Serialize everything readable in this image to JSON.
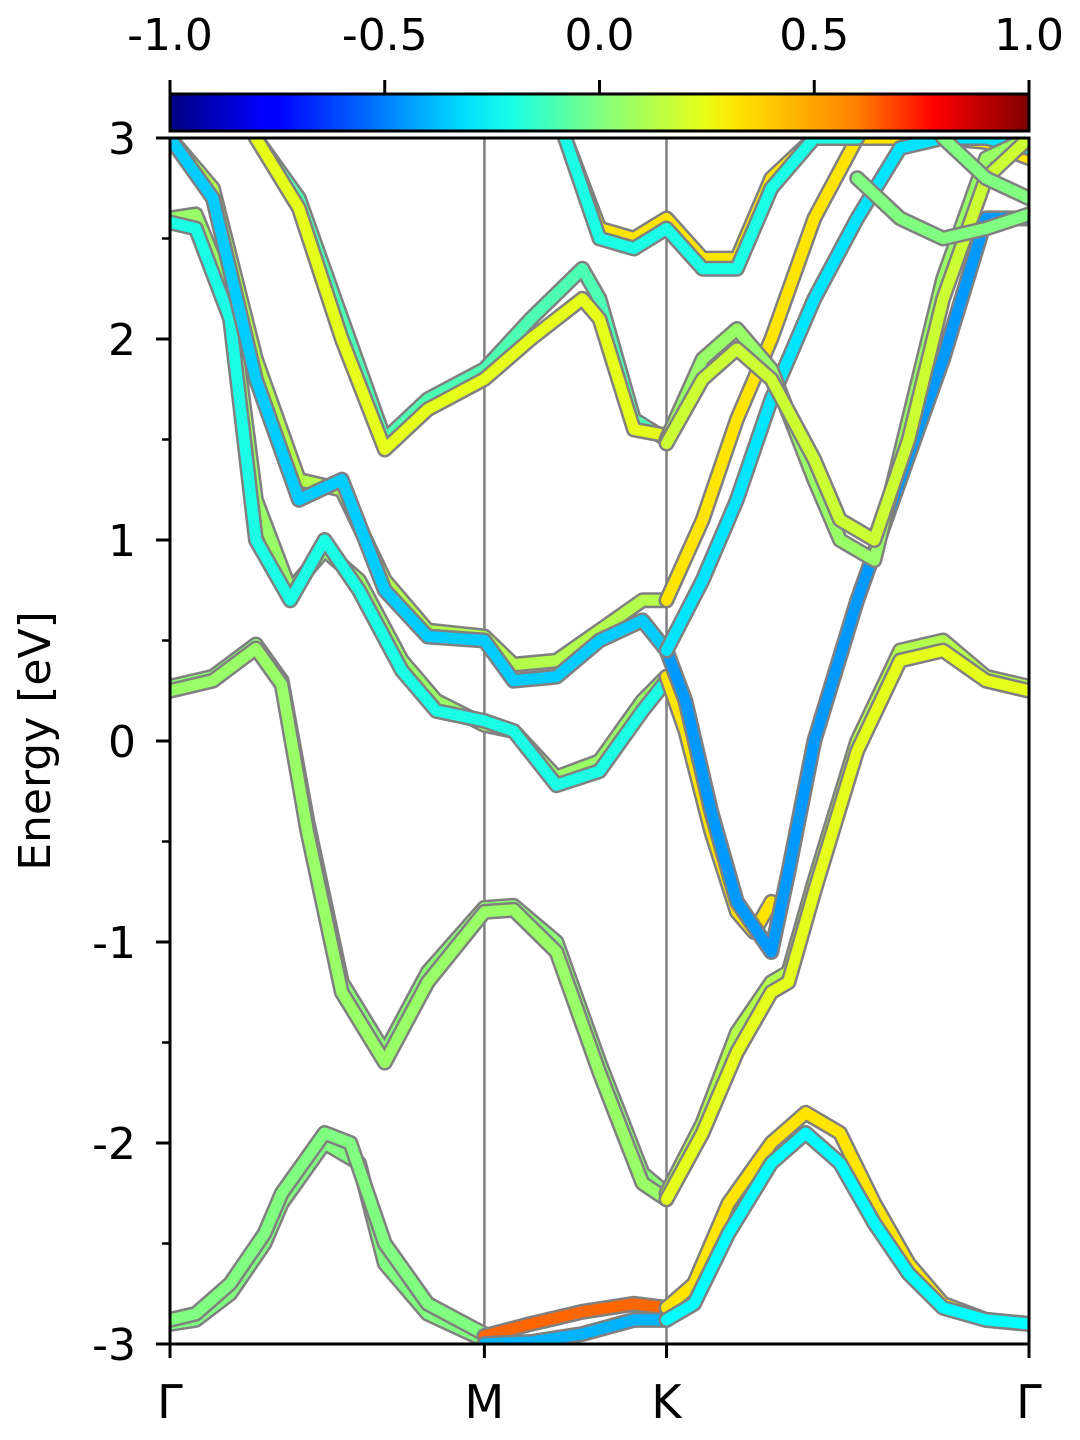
{
  "chart_data": {
    "type": "line",
    "title": "",
    "xlabel": "",
    "ylabel": "Energy [eV]",
    "ylim": [
      -3,
      3
    ],
    "yticks": [
      "-3",
      "-2",
      "-1",
      "0",
      "1",
      "2",
      "3"
    ],
    "xlim": [
      0,
      1
    ],
    "xticks": [
      {
        "label": "Γ",
        "x": 0.0
      },
      {
        "label": "M",
        "x": 0.366
      },
      {
        "label": "K",
        "x": 0.578
      },
      {
        "label": "Γ",
        "x": 1.0
      }
    ],
    "colorbar": {
      "colormap": "jet",
      "range": [
        -1.0,
        1.0
      ],
      "ticks": [
        "-1.0",
        "-0.5",
        "0.0",
        "0.5",
        "1.0"
      ],
      "placement": "top"
    },
    "line_color": "#7fff7f",
    "grid": false,
    "series": [
      {
        "x": [
          0,
          0.03,
          0.07,
          0.11,
          0.13,
          0.18,
          0.22,
          0.25,
          0.3,
          0.366
        ],
        "y": [
          -2.9,
          -2.88,
          -2.75,
          -2.5,
          -2.3,
          -2.0,
          -2.1,
          -2.6,
          -2.85,
          -2.98
        ],
        "c": 0
      },
      {
        "x": [
          0,
          0.03,
          0.07,
          0.11,
          0.13,
          0.18,
          0.21,
          0.25,
          0.3,
          0.366
        ],
        "y": [
          -2.88,
          -2.85,
          -2.7,
          -2.45,
          -2.25,
          -1.95,
          -2.0,
          -2.5,
          -2.8,
          -2.95
        ],
        "c": 0
      },
      {
        "x": [
          0.366,
          0.42,
          0.48,
          0.54,
          0.578
        ],
        "y": [
          -2.96,
          -2.9,
          -2.84,
          -2.8,
          -2.82
        ],
        "c": 0.55
      },
      {
        "x": [
          0.366,
          0.42,
          0.48,
          0.54,
          0.578
        ],
        "y": [
          -3.0,
          -2.99,
          -2.95,
          -2.88,
          -2.88
        ],
        "c": -0.4
      },
      {
        "x": [
          0.578,
          0.61,
          0.65,
          0.7,
          0.74,
          0.78,
          0.82,
          0.86,
          0.9,
          0.95,
          1.0
        ],
        "y": [
          -2.82,
          -2.7,
          -2.3,
          -2.0,
          -1.85,
          -1.95,
          -2.3,
          -2.6,
          -2.8,
          -2.88,
          -2.9
        ],
        "c": 0.3
      },
      {
        "x": [
          0.578,
          0.61,
          0.65,
          0.7,
          0.74,
          0.78,
          0.82,
          0.86,
          0.9,
          0.95,
          1.0
        ],
        "y": [
          -2.88,
          -2.8,
          -2.45,
          -2.1,
          -1.95,
          -2.1,
          -2.4,
          -2.65,
          -2.82,
          -2.88,
          -2.9
        ],
        "c": -0.25
      },
      {
        "x": [
          0,
          0.05,
          0.1,
          0.13,
          0.16,
          0.2,
          0.25,
          0.3,
          0.366,
          0.4,
          0.45,
          0.5,
          0.55,
          0.578
        ],
        "y": [
          0.27,
          0.32,
          0.48,
          0.3,
          -0.4,
          -1.2,
          -1.55,
          -1.15,
          -0.83,
          -0.82,
          -1.0,
          -1.6,
          -2.15,
          -2.25
        ],
        "c": 0.02
      },
      {
        "x": [
          0,
          0.05,
          0.1,
          0.13,
          0.16,
          0.2,
          0.25,
          0.3,
          0.366,
          0.4,
          0.45,
          0.5,
          0.55,
          0.578
        ],
        "y": [
          0.25,
          0.3,
          0.46,
          0.28,
          -0.45,
          -1.25,
          -1.6,
          -1.2,
          -0.85,
          -0.84,
          -1.05,
          -1.65,
          -2.2,
          -2.28
        ],
        "c": 0.05
      },
      {
        "x": [
          0.578,
          0.62,
          0.66,
          0.7,
          0.72,
          0.75,
          0.8,
          0.85,
          0.9,
          0.95,
          1.0
        ],
        "y": [
          -2.25,
          -1.9,
          -1.45,
          -1.2,
          -1.15,
          -0.7,
          0.0,
          0.45,
          0.5,
          0.32,
          0.27
        ],
        "c": 0.1
      },
      {
        "x": [
          0.578,
          0.62,
          0.66,
          0.7,
          0.72,
          0.75,
          0.8,
          0.85,
          0.9,
          0.95,
          1.0
        ],
        "y": [
          -2.28,
          -1.95,
          -1.55,
          -1.25,
          -1.2,
          -0.75,
          -0.05,
          0.4,
          0.45,
          0.3,
          0.25
        ],
        "c": 0.2
      },
      {
        "x": [
          0,
          0.03,
          0.07,
          0.1,
          0.14,
          0.18,
          0.22,
          0.27,
          0.31,
          0.366,
          0.4,
          0.45,
          0.5,
          0.55,
          0.578
        ],
        "y": [
          2.6,
          2.62,
          2.2,
          1.2,
          0.75,
          0.95,
          0.8,
          0.4,
          0.2,
          0.08,
          0.05,
          -0.18,
          -0.1,
          0.2,
          0.32
        ],
        "c": 0.05
      },
      {
        "x": [
          0,
          0.03,
          0.07,
          0.1,
          0.14,
          0.18,
          0.22,
          0.27,
          0.31,
          0.366,
          0.4,
          0.45,
          0.5,
          0.55,
          0.578
        ],
        "y": [
          2.58,
          2.55,
          2.1,
          1.0,
          0.7,
          1.0,
          0.75,
          0.35,
          0.15,
          0.1,
          0.05,
          -0.22,
          -0.15,
          0.15,
          0.3
        ],
        "c": -0.2
      },
      {
        "x": [
          0.578,
          0.6,
          0.63,
          0.66,
          0.68,
          0.7
        ],
        "y": [
          0.32,
          0.05,
          -0.45,
          -0.85,
          -0.95,
          -0.8
        ],
        "c": 0.3
      },
      {
        "x": [
          0.578,
          0.6,
          0.63,
          0.66,
          0.7,
          0.72,
          0.75,
          0.8,
          0.85,
          0.9,
          0.95,
          1.0
        ],
        "y": [
          0.45,
          0.2,
          -0.35,
          -0.8,
          -1.05,
          -0.65,
          0.0,
          0.7,
          1.3,
          1.9,
          2.6,
          2.6
        ],
        "c": -0.45
      },
      {
        "x": [
          0,
          0.05,
          0.1,
          0.15,
          0.2,
          0.25,
          0.3,
          0.366,
          0.4,
          0.45,
          0.5,
          0.55,
          0.578
        ],
        "y": [
          3.0,
          2.75,
          1.9,
          1.3,
          1.25,
          0.8,
          0.55,
          0.52,
          0.38,
          0.4,
          0.55,
          0.7,
          0.7
        ],
        "c": 0.1
      },
      {
        "x": [
          0,
          0.05,
          0.1,
          0.15,
          0.2,
          0.25,
          0.3,
          0.366,
          0.4,
          0.45,
          0.5,
          0.55,
          0.578
        ],
        "y": [
          3.0,
          2.7,
          1.8,
          1.2,
          1.3,
          0.75,
          0.52,
          0.5,
          0.3,
          0.32,
          0.5,
          0.6,
          0.45
        ],
        "c": -0.35
      },
      {
        "x": [
          0.578,
          0.62,
          0.66,
          0.7,
          0.75,
          0.8,
          0.85,
          0.9,
          0.95,
          1.0
        ],
        "y": [
          0.7,
          1.1,
          1.6,
          2.0,
          2.6,
          3.0,
          3.0,
          3.0,
          2.98,
          2.9
        ],
        "c": 0.3
      },
      {
        "x": [
          0.578,
          0.62,
          0.66,
          0.7,
          0.75,
          0.8,
          0.85,
          0.9,
          0.95,
          1.0
        ],
        "y": [
          0.45,
          0.8,
          1.2,
          1.7,
          2.2,
          2.6,
          2.95,
          3.0,
          3.0,
          2.95
        ],
        "c": -0.3
      },
      {
        "x": [
          0.1,
          0.15,
          0.2,
          0.25,
          0.3,
          0.366,
          0.42,
          0.48,
          0.5,
          0.54,
          0.578
        ],
        "y": [
          3.0,
          2.7,
          2.1,
          1.5,
          1.7,
          1.85,
          2.1,
          2.35,
          2.2,
          1.6,
          1.5
        ],
        "c": -0.1
      },
      {
        "x": [
          0.1,
          0.15,
          0.2,
          0.25,
          0.3,
          0.366,
          0.42,
          0.48,
          0.5,
          0.54,
          0.578
        ],
        "y": [
          3.0,
          2.65,
          2.0,
          1.45,
          1.65,
          1.8,
          2.0,
          2.2,
          2.1,
          1.55,
          1.52
        ],
        "c": 0.2
      },
      {
        "x": [
          0.578,
          0.62,
          0.66,
          0.7,
          0.75,
          0.78,
          0.82,
          0.86,
          0.9,
          0.95,
          1.0
        ],
        "y": [
          1.5,
          1.9,
          2.05,
          1.85,
          1.3,
          1.0,
          0.9,
          1.6,
          2.3,
          2.9,
          3.0
        ],
        "c": 0.05
      },
      {
        "x": [
          0.578,
          0.62,
          0.66,
          0.7,
          0.75,
          0.78,
          0.82,
          0.86,
          0.9,
          0.95,
          1.0
        ],
        "y": [
          1.48,
          1.8,
          1.95,
          1.8,
          1.4,
          1.1,
          1.0,
          1.5,
          2.2,
          2.8,
          3.0
        ],
        "c": 0.15
      },
      {
        "x": [
          0.46,
          0.5,
          0.54,
          0.578,
          0.62,
          0.66,
          0.7,
          0.75,
          0.8
        ],
        "y": [
          3.0,
          2.55,
          2.5,
          2.6,
          2.4,
          2.4,
          2.8,
          3.0,
          3.0
        ],
        "c": 0.3
      },
      {
        "x": [
          0.46,
          0.5,
          0.54,
          0.578,
          0.62,
          0.66,
          0.7,
          0.75,
          0.8
        ],
        "y": [
          3.0,
          2.5,
          2.45,
          2.55,
          2.35,
          2.35,
          2.75,
          3.0,
          3.0
        ],
        "c": -0.2
      },
      {
        "x": [
          0.9,
          0.95,
          1.0
        ],
        "y": [
          3.0,
          2.8,
          2.7
        ],
        "c": 0
      },
      {
        "x": [
          0.8,
          0.85,
          0.9,
          0.95,
          1.0
        ],
        "y": [
          2.8,
          2.6,
          2.5,
          2.55,
          2.62
        ],
        "c": 0
      }
    ]
  }
}
